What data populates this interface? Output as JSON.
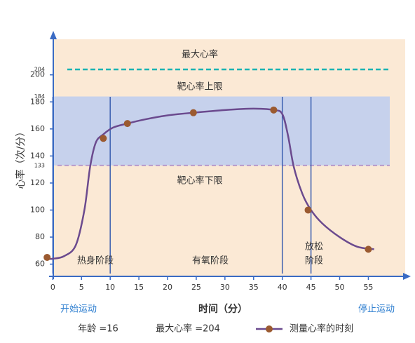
{
  "chart_data": {
    "type": "line",
    "ylabel": "心率（次/分）",
    "xlabel": "时间（分）",
    "xlim": [
      -2,
      58
    ],
    "ylim": [
      52,
      218
    ],
    "x_ticks": [
      0,
      5,
      10,
      15,
      20,
      25,
      30,
      35,
      40,
      45,
      50,
      55
    ],
    "y_ticks": [
      60,
      80,
      100,
      120,
      140,
      160,
      180,
      200
    ],
    "y_special_ticks": [
      {
        "value": 204,
        "label": "204"
      },
      {
        "value": 184,
        "label": "184"
      },
      {
        "value": 133,
        "label": "133"
      }
    ],
    "x_start_label": "开始运动",
    "x_end_label": "停止运动",
    "bands": {
      "max_hr_label": "最大心率",
      "upper_limit_label": "靶心率上限",
      "lower_limit_label": "靶心率下限",
      "max_hr": 204,
      "target_upper": 184,
      "target_lower": 133,
      "background_color": "#fbe9d5",
      "target_zone_color": "#c6d1ec",
      "max_line_color": "#1ab3b3",
      "lower_line_color": "#b79acb"
    },
    "phase_dividers": [
      0,
      10,
      40,
      45
    ],
    "phases": [
      {
        "label": "热身阶段"
      },
      {
        "label": "有氧阶段"
      },
      {
        "label": "放松",
        "label2": "阶段"
      }
    ],
    "series": [
      {
        "name": "测量心率的时刻",
        "color": "#6b4a8e",
        "marker_color": "#9b5a30",
        "curve": [
          [
            -1.5,
            64
          ],
          [
            0,
            64
          ],
          [
            2,
            66
          ],
          [
            4,
            74
          ],
          [
            5.5,
            100
          ],
          [
            6.5,
            132
          ],
          [
            7.5,
            150
          ],
          [
            8.8,
            156
          ],
          [
            10.5,
            161
          ],
          [
            13,
            164
          ],
          [
            16,
            167
          ],
          [
            20,
            170
          ],
          [
            24.5,
            172
          ],
          [
            30,
            174
          ],
          [
            35,
            175
          ],
          [
            38.5,
            174
          ],
          [
            40,
            171
          ],
          [
            41,
            155
          ],
          [
            42,
            132
          ],
          [
            43.5,
            112
          ],
          [
            45,
            100
          ],
          [
            47,
            90
          ],
          [
            50,
            80
          ],
          [
            53,
            73
          ],
          [
            56,
            71
          ]
        ],
        "points": [
          [
            -1,
            65
          ],
          [
            8.8,
            153
          ],
          [
            13,
            164
          ],
          [
            24.5,
            172
          ],
          [
            38.5,
            174
          ],
          [
            44.5,
            100
          ],
          [
            55,
            71
          ]
        ]
      }
    ]
  },
  "footer": {
    "age_text": "年龄 =16",
    "max_hr_text": "最大心率 =204",
    "legend_label": "测量心率的时刻"
  }
}
